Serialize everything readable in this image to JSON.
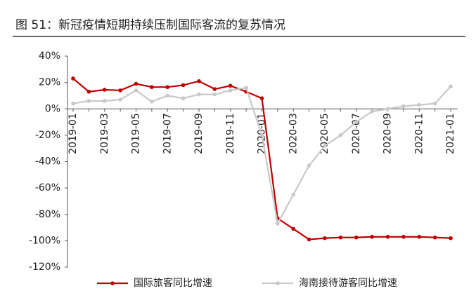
{
  "chart_data": {
    "type": "line",
    "title": "图 51：新冠疫情短期持续压制国际客流的复苏情况",
    "categories": [
      "2019-01",
      null,
      "2019-03",
      null,
      "2019-05",
      null,
      "2019-07",
      null,
      "2019-09",
      null,
      "2019-11",
      null,
      "2020-01",
      null,
      "2020-03",
      null,
      "2020-05",
      null,
      "2020-07",
      null,
      "2020-09",
      null,
      "2020-11",
      null,
      "2021-01"
    ],
    "series": [
      {
        "name": "国际旅客同比增速",
        "color": "#c00000",
        "values": [
          23,
          13,
          14.5,
          14,
          19,
          16.5,
          16.5,
          18,
          21,
          15,
          17.5,
          13,
          8,
          -83,
          -91,
          -99,
          -98,
          -97.5,
          -97.5,
          -97,
          -97,
          -97,
          -97,
          -97.5,
          -98
        ]
      },
      {
        "name": "海南接待游客同比增速",
        "color": "#c8c8c8",
        "values": [
          4,
          6,
          6,
          7,
          14,
          5.5,
          10,
          8,
          11,
          11,
          14,
          16,
          -20,
          -87,
          -65,
          -43,
          -28,
          -20,
          -10,
          -2,
          0,
          2,
          3,
          4,
          17
        ]
      }
    ],
    "ylim": [
      -120,
      40
    ],
    "yticks": [
      {
        "value": -120,
        "label": "-120%"
      },
      {
        "value": -100,
        "label": "-100%"
      },
      {
        "value": -80,
        "label": "-80%"
      },
      {
        "value": -60,
        "label": "-60%"
      },
      {
        "value": -40,
        "label": "-40%"
      },
      {
        "value": -20,
        "label": "-20%"
      },
      {
        "value": 0,
        "label": "0%"
      },
      {
        "value": 20,
        "label": "20%"
      },
      {
        "value": 40,
        "label": "40%"
      }
    ],
    "legend": "bottom"
  }
}
